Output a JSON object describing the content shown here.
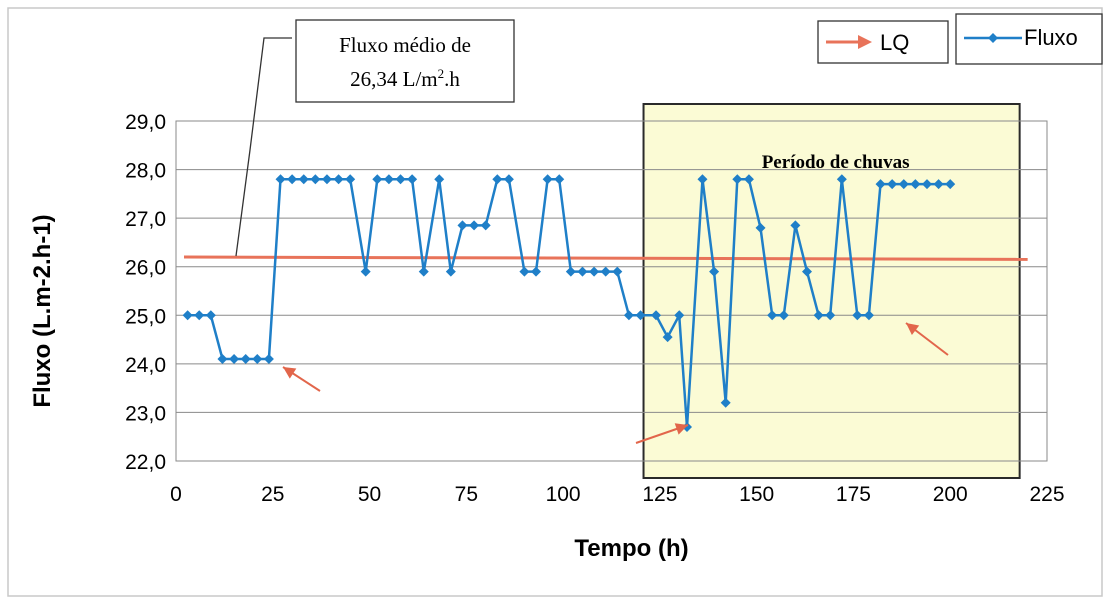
{
  "chart_data": {
    "type": "line",
    "xlabel": "Tempo (h)",
    "ylabel": "Fluxo (L.m-2.h-1)",
    "xlim": [
      0,
      225
    ],
    "ylim": [
      22.0,
      29.0
    ],
    "x_ticks": [
      "0",
      "25",
      "50",
      "75",
      "100",
      "125",
      "150",
      "175",
      "200",
      "225"
    ],
    "y_ticks": [
      "22,0",
      "23,0",
      "24,0",
      "25,0",
      "26,0",
      "27,0",
      "28,0",
      "29,0"
    ],
    "grid": "horizontal",
    "legend_position": "top-right",
    "series": [
      {
        "name": "Fluxo",
        "color": "#1f7fc8",
        "marker": "diamond",
        "points": [
          [
            3,
            25.0
          ],
          [
            6,
            25.0
          ],
          [
            9,
            25.0
          ],
          [
            12,
            24.1
          ],
          [
            15,
            24.1
          ],
          [
            18,
            24.1
          ],
          [
            21,
            24.1
          ],
          [
            24,
            24.1
          ],
          [
            27,
            27.8
          ],
          [
            30,
            27.8
          ],
          [
            33,
            27.8
          ],
          [
            36,
            27.8
          ],
          [
            39,
            27.8
          ],
          [
            42,
            27.8
          ],
          [
            45,
            27.8
          ],
          [
            49,
            25.9
          ],
          [
            52,
            27.8
          ],
          [
            55,
            27.8
          ],
          [
            58,
            27.8
          ],
          [
            61,
            27.8
          ],
          [
            64,
            25.9
          ],
          [
            68,
            27.8
          ],
          [
            71,
            25.9
          ],
          [
            74,
            26.85
          ],
          [
            77,
            26.85
          ],
          [
            80,
            26.85
          ],
          [
            83,
            27.8
          ],
          [
            86,
            27.8
          ],
          [
            90,
            25.9
          ],
          [
            93,
            25.9
          ],
          [
            96,
            27.8
          ],
          [
            99,
            27.8
          ],
          [
            102,
            25.9
          ],
          [
            105,
            25.9
          ],
          [
            108,
            25.9
          ],
          [
            111,
            25.9
          ],
          [
            114,
            25.9
          ],
          [
            117,
            25.0
          ],
          [
            120,
            25.0
          ],
          [
            124,
            25.0
          ],
          [
            127,
            24.55
          ],
          [
            130,
            25.0
          ],
          [
            132,
            22.7
          ],
          [
            136,
            27.8
          ],
          [
            139,
            25.9
          ],
          [
            142,
            23.2
          ],
          [
            145,
            27.8
          ],
          [
            148,
            27.8
          ],
          [
            151,
            26.8
          ],
          [
            154,
            25.0
          ],
          [
            157,
            25.0
          ],
          [
            160,
            26.85
          ],
          [
            163,
            25.9
          ],
          [
            166,
            25.0
          ],
          [
            169,
            25.0
          ],
          [
            172,
            27.8
          ],
          [
            176,
            25.0
          ],
          [
            179,
            25.0
          ],
          [
            182,
            27.7
          ],
          [
            185,
            27.7
          ],
          [
            188,
            27.7
          ],
          [
            191,
            27.7
          ],
          [
            194,
            27.7
          ],
          [
            197,
            27.7
          ],
          [
            200,
            27.7
          ]
        ]
      },
      {
        "name": "LQ",
        "color": "#e8735a",
        "marker": "none",
        "points": [
          [
            0,
            26.2
          ],
          [
            220,
            26.15
          ]
        ]
      }
    ],
    "annotations": {
      "mean_box_line1": "Fluxo médio de",
      "mean_box_line2": "26,34 L/m",
      "mean_box_sup": "2",
      "mean_box_suffix": ".h",
      "rain_label": "Período de chuvas",
      "rain_period_x": [
        120,
        220
      ],
      "rain_color": "#fbfbd5"
    }
  }
}
